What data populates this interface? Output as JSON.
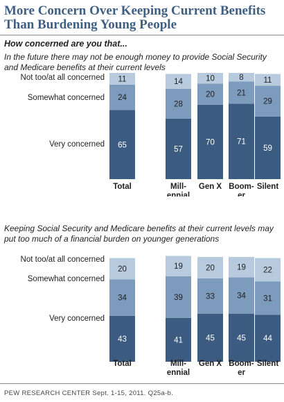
{
  "title": "More Concern Over Keeping Current Benefits Than Burdening Young People",
  "subtitle": "How concerned are you that...",
  "source": "PEW RESEARCH CENTER Sept. 1-15, 2011. Q25a-b.",
  "colors": {
    "very": "#3c5b80",
    "somewhat": "#7d9bbc",
    "not": "#b8cbde",
    "title": "#3f5f84"
  },
  "chart_data": [
    {
      "type": "bar",
      "stacked": true,
      "question": "In the future there may not be enough money to provide Social Security and Medicare benefits at their current levels",
      "categories": [
        "Total",
        "Mill-ennial",
        "Gen X",
        "Boom-er",
        "Silent"
      ],
      "category_lines": [
        [
          "Total"
        ],
        [
          "Mill-",
          "ennial"
        ],
        [
          "Gen X"
        ],
        [
          "Boom-",
          "er"
        ],
        [
          "Silent"
        ]
      ],
      "series": [
        {
          "name": "Very concerned",
          "values": [
            65,
            57,
            70,
            71,
            59
          ]
        },
        {
          "name": "Somewhat concerned",
          "values": [
            24,
            28,
            20,
            21,
            29
          ]
        },
        {
          "name": "Not too/at all concerned",
          "values": [
            11,
            14,
            10,
            8,
            11
          ]
        }
      ]
    },
    {
      "type": "bar",
      "stacked": true,
      "question": "Keeping Social Security and Medicare benefits at their current levels may put too much of a financial burden on younger generations",
      "categories": [
        "Total",
        "Mill-ennial",
        "Gen X",
        "Boom-er",
        "Silent"
      ],
      "category_lines": [
        [
          "Total"
        ],
        [
          "Mill-",
          "ennial"
        ],
        [
          "Gen X"
        ],
        [
          "Boom-",
          "er"
        ],
        [
          "Silent"
        ]
      ],
      "series": [
        {
          "name": "Very concerned",
          "values": [
            43,
            41,
            45,
            45,
            44
          ]
        },
        {
          "name": "Somewhat concerned",
          "values": [
            34,
            39,
            33,
            34,
            31
          ]
        },
        {
          "name": "Not too/at all concerned",
          "values": [
            20,
            19,
            20,
            19,
            22
          ]
        }
      ]
    }
  ]
}
